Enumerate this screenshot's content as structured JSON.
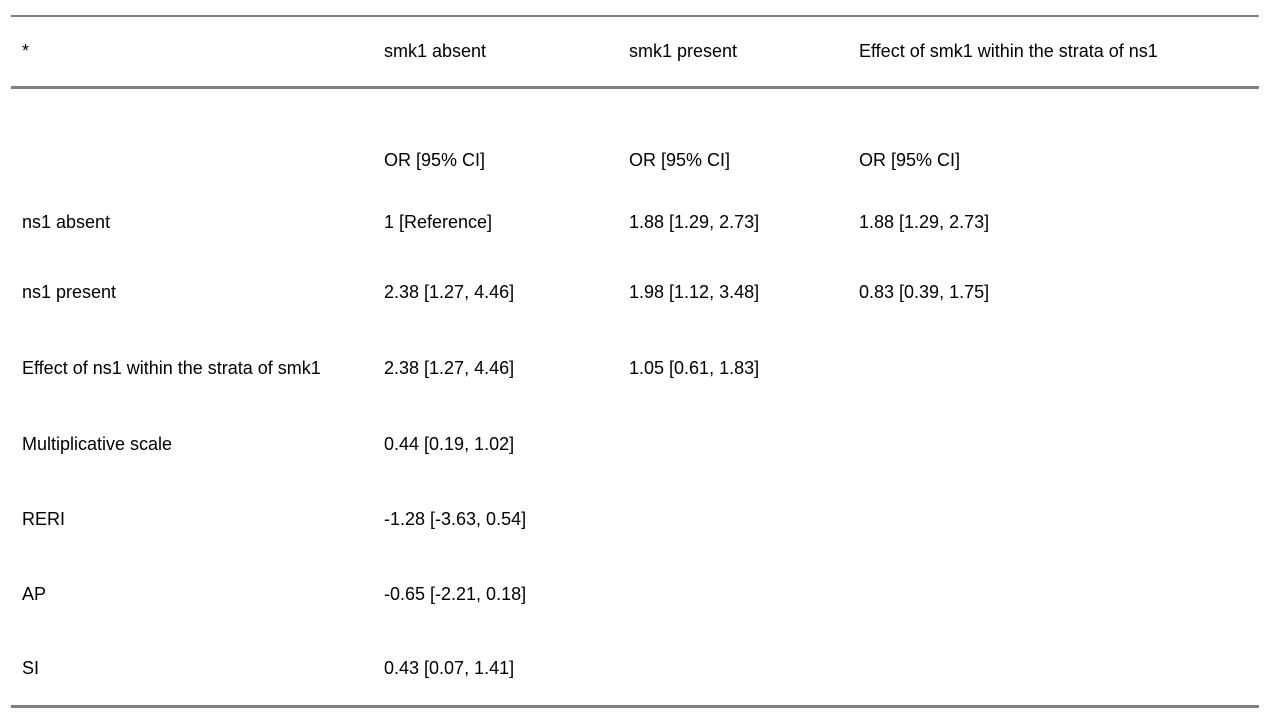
{
  "page": {
    "background_color": "#ffffff",
    "text_color": "#000000",
    "rule_color": "#7f7f7f"
  },
  "table": {
    "corner_label": "*",
    "column_headers": [
      "smk1 absent",
      "smk1 present",
      "Effect of smk1 within the strata of ns1"
    ],
    "subheader": {
      "label": "",
      "c1": "OR [95% CI]",
      "c2": "OR [95% CI]",
      "c3": "OR [95% CI]"
    },
    "rows": [
      {
        "label": "ns1 absent",
        "c1": "1 [Reference]",
        "c2": "1.88 [1.29, 2.73]",
        "c3": "1.88 [1.29, 2.73]"
      },
      {
        "label": "ns1 present",
        "c1": "2.38 [1.27, 4.46]",
        "c2": "1.98 [1.12, 3.48]",
        "c3": "0.83 [0.39, 1.75]"
      },
      {
        "label": "Effect of ns1 within the strata of smk1",
        "c1": "2.38 [1.27, 4.46]",
        "c2": "1.05 [0.61, 1.83]",
        "c3": ""
      },
      {
        "label": "Multiplicative scale",
        "c1": "0.44 [0.19, 1.02]",
        "c2": "",
        "c3": ""
      },
      {
        "label": "RERI",
        "c1": "-1.28 [-3.63, 0.54]",
        "c2": "",
        "c3": ""
      },
      {
        "label": "AP",
        "c1": "-0.65 [-2.21, 0.18]",
        "c2": "",
        "c3": ""
      },
      {
        "label": "SI",
        "c1": "0.43 [0.07, 1.41]",
        "c2": "",
        "c3": ""
      }
    ]
  }
}
